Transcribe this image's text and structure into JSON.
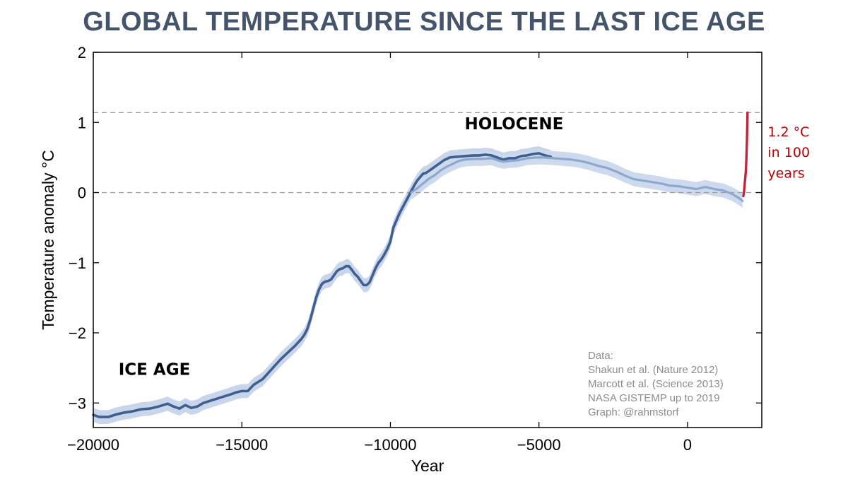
{
  "chart_data": {
    "type": "line",
    "title": "GLOBAL TEMPERATURE SINCE THE LAST ICE AGE",
    "xlabel": "Year",
    "ylabel": "Temperature anomaly °C",
    "xlim": [
      -20000,
      2500
    ],
    "ylim": [
      -3.35,
      2
    ],
    "xticks": [
      -20000,
      -15000,
      -10000,
      -5000,
      0
    ],
    "xtick_labels": [
      "−20000",
      "−15000",
      "−10000",
      "−5000",
      "0"
    ],
    "yticks": [
      -3,
      -2,
      -1,
      0,
      1,
      2
    ],
    "ytick_labels": [
      "−3",
      "−2",
      "−1",
      "0",
      "1",
      "2"
    ],
    "reference_lines": [
      0,
      1.14
    ],
    "grid": false,
    "series": [
      {
        "color": "#3e5f8f",
        "band": 0.1,
        "x": [
          -20000,
          -19800,
          -19500,
          -19200,
          -19000,
          -18700,
          -18400,
          -18100,
          -17800,
          -17500,
          -17300,
          -17100,
          -16900,
          -16700,
          -16500,
          -16300,
          -16000,
          -15700,
          -15400,
          -15200,
          -15000,
          -14800,
          -14600,
          -14300,
          -14000,
          -13700,
          -13400,
          -13200,
          -13000,
          -12900,
          -12800,
          -12700,
          -12600,
          -12500,
          -12400,
          -12300,
          -12200,
          -12100,
          -12000,
          -11900,
          -11800,
          -11700,
          -11600,
          -11500,
          -11400,
          -11300,
          -11200,
          -11100,
          -11000,
          -10900,
          -10800,
          -10700,
          -10600,
          -10500,
          -10400,
          -10300,
          -10200,
          -10100,
          -10000,
          -9900,
          -9800,
          -9700,
          -9600,
          -9500,
          -9400,
          -9300,
          -9200,
          -9100,
          -9000,
          -8900,
          -8800,
          -8600,
          -8400,
          -8200,
          -8000,
          -7800,
          -7500,
          -7200,
          -7000,
          -6800,
          -6600,
          -6400,
          -6200,
          -6000,
          -5800,
          -5600,
          -5400,
          -5200,
          -5000,
          -4800,
          -4600
        ],
        "y": [
          -3.17,
          -3.2,
          -3.2,
          -3.16,
          -3.14,
          -3.12,
          -3.09,
          -3.08,
          -3.05,
          -3.01,
          -3.05,
          -3.08,
          -3.03,
          -3.07,
          -3.05,
          -3.0,
          -2.96,
          -2.92,
          -2.88,
          -2.85,
          -2.83,
          -2.83,
          -2.74,
          -2.66,
          -2.52,
          -2.38,
          -2.26,
          -2.18,
          -2.09,
          -2.03,
          -1.95,
          -1.82,
          -1.66,
          -1.5,
          -1.38,
          -1.3,
          -1.27,
          -1.26,
          -1.24,
          -1.18,
          -1.12,
          -1.09,
          -1.08,
          -1.05,
          -1.05,
          -1.1,
          -1.16,
          -1.2,
          -1.26,
          -1.32,
          -1.32,
          -1.28,
          -1.18,
          -1.08,
          -1.0,
          -0.95,
          -0.88,
          -0.8,
          -0.7,
          -0.5,
          -0.4,
          -0.3,
          -0.22,
          -0.14,
          -0.06,
          0.02,
          0.1,
          0.17,
          0.22,
          0.27,
          0.28,
          0.34,
          0.4,
          0.46,
          0.5,
          0.51,
          0.52,
          0.53,
          0.53,
          0.54,
          0.53,
          0.5,
          0.47,
          0.49,
          0.49,
          0.52,
          0.53,
          0.55,
          0.56,
          0.53,
          0.51
        ]
      },
      {
        "color": "#8ea7cf",
        "band": 0.1,
        "x": [
          -9300,
          -9100,
          -8900,
          -8700,
          -8500,
          -8300,
          -8100,
          -7900,
          -7700,
          -7500,
          -7200,
          -6900,
          -6600,
          -6400,
          -6200,
          -6000,
          -5700,
          -5400,
          -5100,
          -4800,
          -4500,
          -4200,
          -3900,
          -3600,
          -3300,
          -3000,
          -2700,
          -2400,
          -2100,
          -1800,
          -1500,
          -1200,
          -900,
          -600,
          -300,
          0,
          300,
          600,
          900,
          1200,
          1500,
          1700,
          1800,
          1850
        ],
        "y": [
          0.0,
          0.06,
          0.13,
          0.2,
          0.25,
          0.32,
          0.37,
          0.41,
          0.45,
          0.47,
          0.48,
          0.48,
          0.49,
          0.46,
          0.44,
          0.45,
          0.46,
          0.49,
          0.5,
          0.5,
          0.49,
          0.48,
          0.47,
          0.45,
          0.42,
          0.38,
          0.35,
          0.3,
          0.24,
          0.19,
          0.17,
          0.15,
          0.13,
          0.1,
          0.09,
          0.07,
          0.05,
          0.08,
          0.05,
          0.03,
          -0.02,
          -0.07,
          -0.1,
          -0.12
        ]
      },
      {
        "color": "#c0263a",
        "x": [
          1880,
          1900,
          1920,
          1940,
          1960,
          1980,
          2000,
          2019
        ],
        "y": [
          -0.05,
          0.0,
          0.1,
          0.2,
          0.28,
          0.45,
          0.75,
          1.14
        ]
      }
    ],
    "annotations": [
      {
        "text": "HOLOCENE",
        "x": -7500,
        "y": 0.9
      },
      {
        "text": "ICE AGE",
        "x": -19150,
        "y": -2.6
      },
      {
        "text": "1.2 °C",
        "x": 2700,
        "y": 0.8
      },
      {
        "text": "in 100",
        "x": 2700,
        "y": 0.51
      },
      {
        "text": "years",
        "x": 2700,
        "y": 0.21
      }
    ],
    "credits": [
      "Data:",
      "Shakun et al. (Nature 2012)",
      "Marcott et al. (Science 2013)",
      "NASA GISTEMP up to 2019",
      "Graph: @rahmstorf"
    ]
  },
  "colors": {
    "title": "#44546a",
    "band_early": "#c8d5ea",
    "band_late": "#cdd9ec",
    "highlight": "#c00000",
    "dashed_ref": "#999999",
    "credits": "#8c8c8c"
  }
}
